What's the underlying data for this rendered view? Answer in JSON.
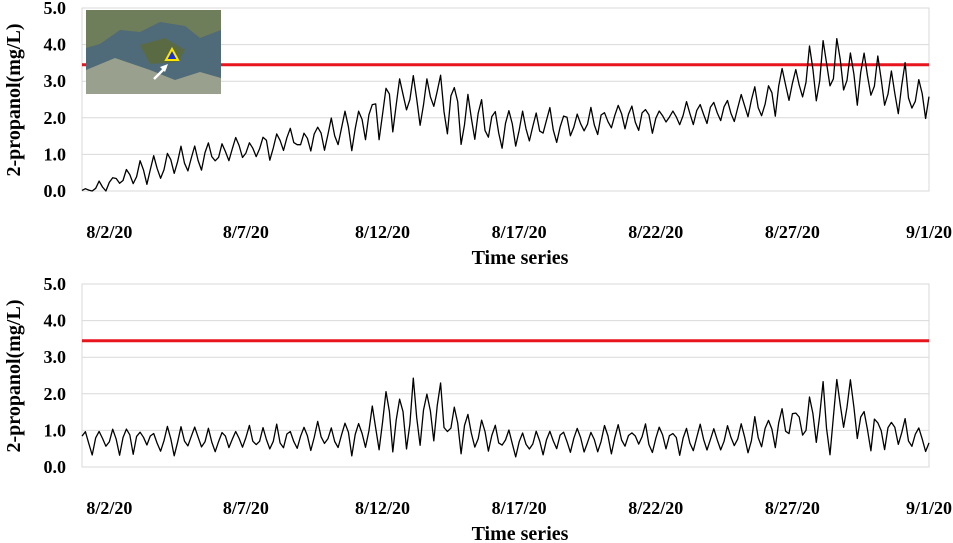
{
  "chart_data": [
    {
      "type": "line",
      "ylabel": "2-propanol(mg/L)",
      "xlabel": "Time series",
      "ylim": [
        0,
        5
      ],
      "xlim": [
        "2020-08-01",
        "2020-09-01"
      ],
      "yticks": [
        "0.0",
        "1.0",
        "2.0",
        "3.0",
        "4.0",
        "5.0"
      ],
      "xticks": [
        {
          "date": "2020-08-02",
          "label": "8/2/20"
        },
        {
          "date": "2020-08-07",
          "label": "8/7/20"
        },
        {
          "date": "2020-08-12",
          "label": "8/12/20"
        },
        {
          "date": "2020-08-17",
          "label": "8/17/20"
        },
        {
          "date": "2020-08-22",
          "label": "8/22/20"
        },
        {
          "date": "2020-08-27",
          "label": "8/27/20"
        },
        {
          "date": "2020-09-01",
          "label": "9/1/20"
        }
      ],
      "reference_line": {
        "y": 3.45,
        "color": "#e8141e"
      },
      "grid": "horizontal",
      "inset": "satellite map with yellow triangle marker and white arrow (top-left)",
      "series": [
        {
          "color": "#000000",
          "x": [
            "2020-08-01",
            "2020-08-02",
            "2020-08-03",
            "2020-08-04",
            "2020-08-05",
            "2020-08-06",
            "2020-08-07",
            "2020-08-08",
            "2020-08-09",
            "2020-08-10",
            "2020-08-11",
            "2020-08-12",
            "2020-08-13",
            "2020-08-14",
            "2020-08-15",
            "2020-08-16",
            "2020-08-17",
            "2020-08-18",
            "2020-08-19",
            "2020-08-20",
            "2020-08-21",
            "2020-08-22",
            "2020-08-23",
            "2020-08-24",
            "2020-08-25",
            "2020-08-26",
            "2020-08-27",
            "2020-08-28",
            "2020-08-29",
            "2020-08-30",
            "2020-08-31",
            "2020-09-01"
          ],
          "mean": [
            0.0,
            0.2,
            0.5,
            0.7,
            0.85,
            1.0,
            1.15,
            1.3,
            1.4,
            1.5,
            1.7,
            2.3,
            2.6,
            2.6,
            2.0,
            1.8,
            1.75,
            1.8,
            1.9,
            1.95,
            2.0,
            2.05,
            2.1,
            2.2,
            2.3,
            2.5,
            3.0,
            3.3,
            3.3,
            3.0,
            2.7,
            2.5
          ],
          "amplitude": [
            0.05,
            0.2,
            0.3,
            0.35,
            0.35,
            0.35,
            0.35,
            0.35,
            0.35,
            0.4,
            0.5,
            0.7,
            0.8,
            0.8,
            0.75,
            0.7,
            0.5,
            0.45,
            0.4,
            0.35,
            0.35,
            0.35,
            0.35,
            0.35,
            0.4,
            0.5,
            0.7,
            0.8,
            0.8,
            0.75,
            0.6,
            0.5
          ]
        }
      ]
    },
    {
      "type": "line",
      "ylabel": "2-propanol(mg/L)",
      "xlabel": "Time series",
      "ylim": [
        0,
        5
      ],
      "xlim": [
        "2020-08-01",
        "2020-09-01"
      ],
      "yticks": [
        "0.0",
        "1.0",
        "2.0",
        "3.0",
        "4.0",
        "5.0"
      ],
      "xticks": [
        {
          "date": "2020-08-02",
          "label": "8/2/20"
        },
        {
          "date": "2020-08-07",
          "label": "8/7/20"
        },
        {
          "date": "2020-08-12",
          "label": "8/12/20"
        },
        {
          "date": "2020-08-17",
          "label": "8/17/20"
        },
        {
          "date": "2020-08-22",
          "label": "8/22/20"
        },
        {
          "date": "2020-08-27",
          "label": "8/27/20"
        },
        {
          "date": "2020-09-01",
          "label": "9/1/20"
        }
      ],
      "reference_line": {
        "y": 3.45,
        "color": "#e8141e"
      },
      "grid": "horizontal",
      "series": [
        {
          "color": "#000000",
          "x": [
            "2020-08-01",
            "2020-08-02",
            "2020-08-03",
            "2020-08-04",
            "2020-08-05",
            "2020-08-06",
            "2020-08-07",
            "2020-08-08",
            "2020-08-09",
            "2020-08-10",
            "2020-08-11",
            "2020-08-12",
            "2020-08-13",
            "2020-08-14",
            "2020-08-15",
            "2020-08-16",
            "2020-08-17",
            "2020-08-18",
            "2020-08-19",
            "2020-08-20",
            "2020-08-21",
            "2020-08-22",
            "2020-08-23",
            "2020-08-24",
            "2020-08-25",
            "2020-08-26",
            "2020-08-27",
            "2020-08-28",
            "2020-08-29",
            "2020-08-30",
            "2020-08-31",
            "2020-09-01"
          ],
          "mean": [
            0.75,
            0.75,
            0.75,
            0.75,
            0.75,
            0.75,
            0.75,
            0.75,
            0.8,
            0.8,
            0.9,
            1.2,
            1.4,
            1.4,
            1.1,
            0.8,
            0.75,
            0.75,
            0.75,
            0.75,
            0.75,
            0.75,
            0.75,
            0.75,
            0.8,
            0.9,
            1.2,
            1.4,
            1.4,
            1.1,
            0.85,
            0.8
          ],
          "amplitude": [
            0.35,
            0.35,
            0.35,
            0.35,
            0.35,
            0.35,
            0.35,
            0.35,
            0.35,
            0.35,
            0.45,
            0.7,
            0.85,
            0.85,
            0.6,
            0.4,
            0.35,
            0.35,
            0.35,
            0.35,
            0.35,
            0.35,
            0.35,
            0.35,
            0.35,
            0.45,
            0.7,
            0.85,
            0.85,
            0.6,
            0.45,
            0.4
          ]
        }
      ]
    }
  ]
}
